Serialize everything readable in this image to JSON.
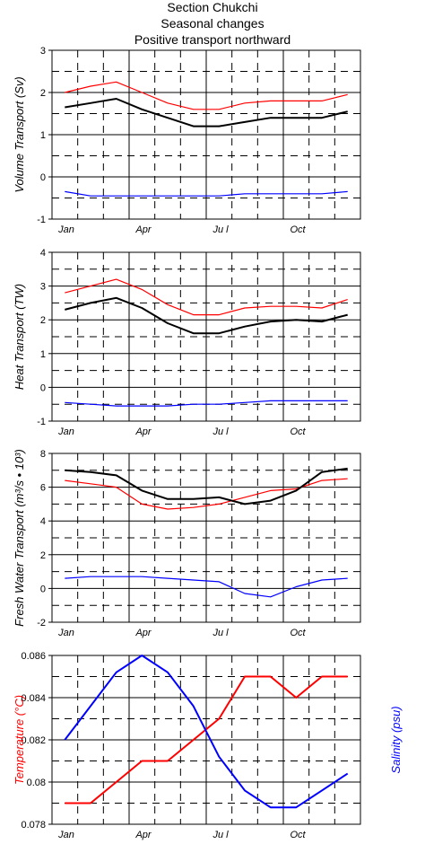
{
  "title": {
    "line1": "Section Chukchi",
    "line2": "Seasonal changes",
    "line3": "Positive transport northward"
  },
  "chart_data": [
    {
      "type": "line",
      "ylabel": "Volume Transport (Sv)",
      "ylim": [
        -1,
        3
      ],
      "yticks": [
        "-1",
        "0",
        "1",
        "2",
        "3"
      ],
      "x_ticks": [
        "Jan",
        "Apr",
        "Ju l",
        "Oct"
      ],
      "grid": true,
      "series": [
        {
          "color": "#ff0000",
          "values": [
            2.0,
            2.15,
            2.25,
            2.0,
            1.75,
            1.6,
            1.6,
            1.75,
            1.8,
            1.8,
            1.8,
            1.95
          ]
        },
        {
          "color": "#000000",
          "values": [
            1.65,
            1.75,
            1.85,
            1.6,
            1.4,
            1.2,
            1.2,
            1.3,
            1.4,
            1.4,
            1.4,
            1.55
          ]
        },
        {
          "color": "#0000ff",
          "values": [
            -0.35,
            -0.45,
            -0.45,
            -0.45,
            -0.45,
            -0.45,
            -0.45,
            -0.4,
            -0.4,
            -0.4,
            -0.4,
            -0.35
          ]
        }
      ]
    },
    {
      "type": "line",
      "ylabel": "Heat Transport (TW)",
      "ylim": [
        -1,
        4
      ],
      "yticks": [
        "-1",
        "0",
        "1",
        "2",
        "3",
        "4"
      ],
      "x_ticks": [
        "Jan",
        "Apr",
        "Ju l",
        "Oct"
      ],
      "grid": true,
      "series": [
        {
          "color": "#ff0000",
          "values": [
            2.8,
            3.0,
            3.2,
            2.9,
            2.45,
            2.15,
            2.15,
            2.35,
            2.4,
            2.4,
            2.35,
            2.6
          ]
        },
        {
          "color": "#000000",
          "values": [
            2.3,
            2.5,
            2.65,
            2.35,
            1.9,
            1.6,
            1.6,
            1.8,
            1.95,
            2.0,
            1.95,
            2.15
          ]
        },
        {
          "color": "#0000ff",
          "values": [
            -0.45,
            -0.5,
            -0.55,
            -0.55,
            -0.55,
            -0.5,
            -0.5,
            -0.45,
            -0.4,
            -0.4,
            -0.4,
            -0.4
          ]
        }
      ]
    },
    {
      "type": "line",
      "ylabel": "Fresh Water Transport (m³/s • 10³)",
      "ylim": [
        -2,
        8
      ],
      "yticks": [
        "-2",
        "0",
        "2",
        "4",
        "6",
        "8"
      ],
      "x_ticks": [
        "Jan",
        "Apr",
        "Ju l",
        "Oct"
      ],
      "grid": true,
      "series": [
        {
          "color": "#ff0000",
          "values": [
            6.4,
            6.2,
            6.0,
            5.0,
            4.7,
            4.8,
            5.0,
            5.4,
            5.8,
            5.9,
            6.4,
            6.5
          ]
        },
        {
          "color": "#000000",
          "values": [
            7.0,
            6.9,
            6.7,
            5.8,
            5.3,
            5.3,
            5.4,
            5.0,
            5.2,
            5.8,
            6.9,
            7.1
          ]
        },
        {
          "color": "#0000ff",
          "values": [
            0.6,
            0.7,
            0.7,
            0.7,
            0.6,
            0.5,
            0.4,
            -0.3,
            -0.5,
            0.1,
            0.5,
            0.6
          ]
        }
      ]
    },
    {
      "type": "line",
      "ylabel": "Temperature (°C)",
      "ylabel_right": "Salinity (psu)",
      "ylim": [
        0.078,
        0.086
      ],
      "yticks": [
        "0.078",
        "0.08",
        "0.082",
        "0.084",
        "0.086"
      ],
      "x_ticks": [
        "Jan",
        "Apr",
        "Ju l",
        "Oct"
      ],
      "grid": true,
      "series": [
        {
          "color": "#ff0000",
          "x": [
            0,
            1,
            2,
            3,
            4,
            5,
            6,
            7,
            8,
            9,
            10,
            11
          ],
          "values": [
            0.079,
            0.079,
            0.08,
            0.081,
            0.081,
            0.082,
            0.083,
            0.085,
            0.085,
            0.084,
            0.085,
            0.085
          ]
        },
        {
          "color": "#0000ff",
          "x": [
            0,
            1,
            2,
            3,
            4,
            5,
            6,
            7,
            8,
            9,
            10,
            11
          ],
          "values": [
            0.082,
            0.0836,
            0.0852,
            0.086,
            0.0852,
            0.0836,
            0.0812,
            0.0796,
            0.0788,
            0.0788,
            0.0796,
            0.0804
          ]
        }
      ]
    }
  ],
  "colors": {
    "temperature_label": "#ff0000",
    "salinity_label": "#0000ff"
  }
}
